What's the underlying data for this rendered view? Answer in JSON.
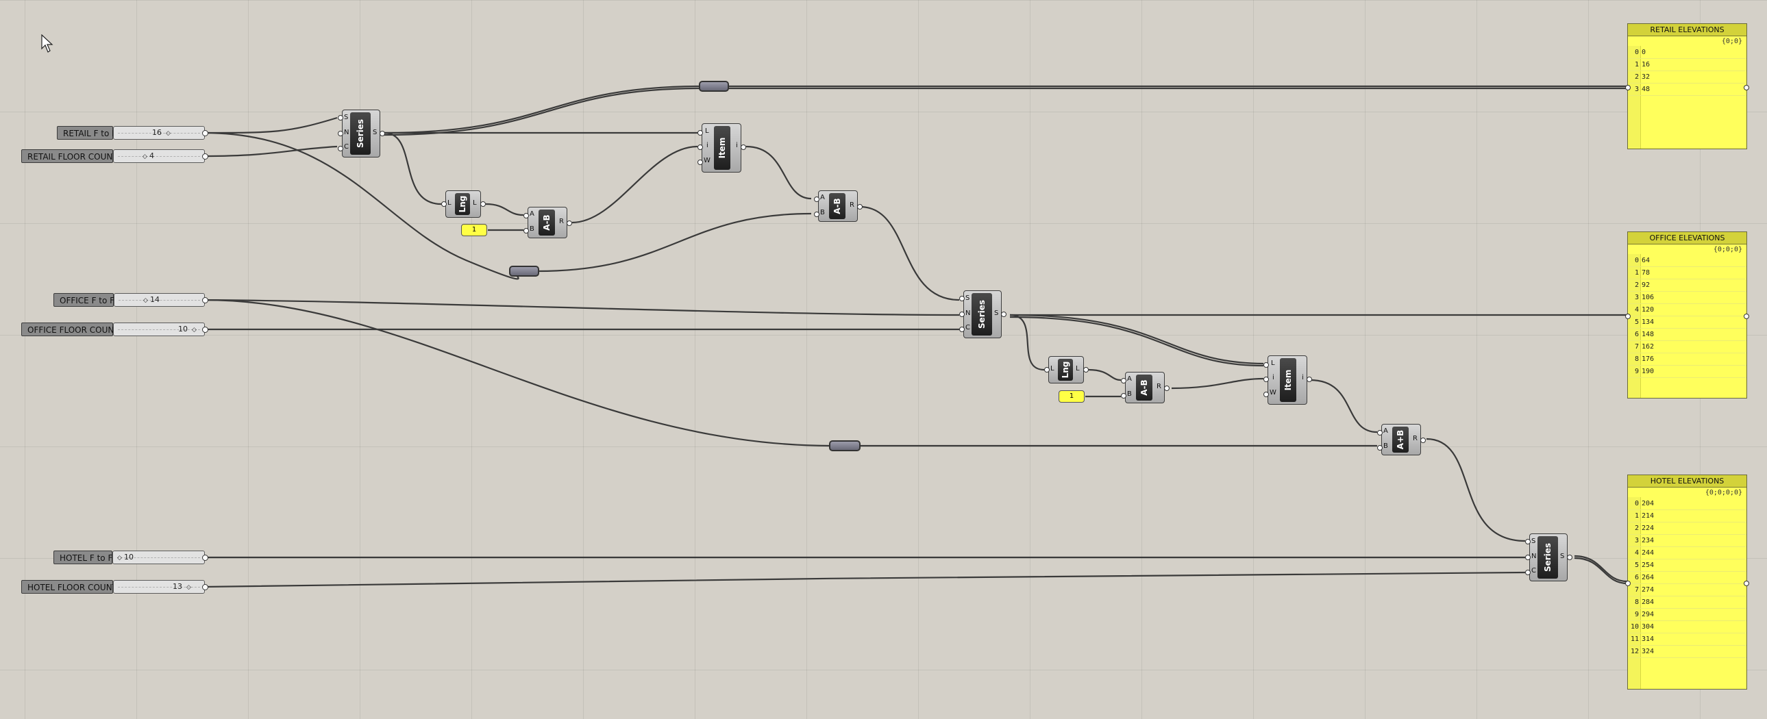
{
  "sliders": {
    "retail_ftf": {
      "label": "RETAIL F to F",
      "value": "16"
    },
    "retail_count": {
      "label": "RETAIL FLOOR COUNT",
      "value": "4"
    },
    "office_ftf": {
      "label": "OFFICE F to F",
      "value": "14"
    },
    "office_count": {
      "label": "OFFICE FLOOR COUNT",
      "value": "10"
    },
    "hotel_ftf": {
      "label": "HOTEL F to F",
      "value": "10"
    },
    "hotel_count": {
      "label": "HOTEL FLOOR COUNT",
      "value": "13"
    }
  },
  "components": {
    "series": {
      "name": "Series",
      "in": [
        "S",
        "N",
        "C"
      ],
      "out": "S"
    },
    "length": {
      "name": "Lng",
      "in": "L",
      "out": "L"
    },
    "subtract": {
      "name": "A-B",
      "in": [
        "A",
        "B"
      ],
      "out": "R"
    },
    "add": {
      "name": "A+B",
      "in": [
        "A",
        "B"
      ],
      "out": "R"
    },
    "item": {
      "name": "Item",
      "in": [
        "L",
        "i",
        "W"
      ],
      "out": "i"
    },
    "const_one": "1"
  },
  "panels": {
    "retail": {
      "title": "RETAIL ELEVATIONS",
      "path": "{0;0}",
      "items": [
        "0",
        "16",
        "32",
        "48"
      ]
    },
    "office": {
      "title": "OFFICE ELEVATIONS",
      "path": "{0;0;0}",
      "items": [
        "64",
        "78",
        "92",
        "106",
        "120",
        "134",
        "148",
        "162",
        "176",
        "190"
      ]
    },
    "hotel": {
      "title": "HOTEL ELEVATIONS",
      "path": "{0;0;0;0}",
      "items": [
        "204",
        "214",
        "224",
        "234",
        "244",
        "254",
        "264",
        "274",
        "284",
        "294",
        "304",
        "314",
        "324"
      ]
    }
  },
  "colors": {
    "canvas": "#d4d0c8",
    "panel": "#ffff5c",
    "panel_title": "#d3d23a"
  }
}
